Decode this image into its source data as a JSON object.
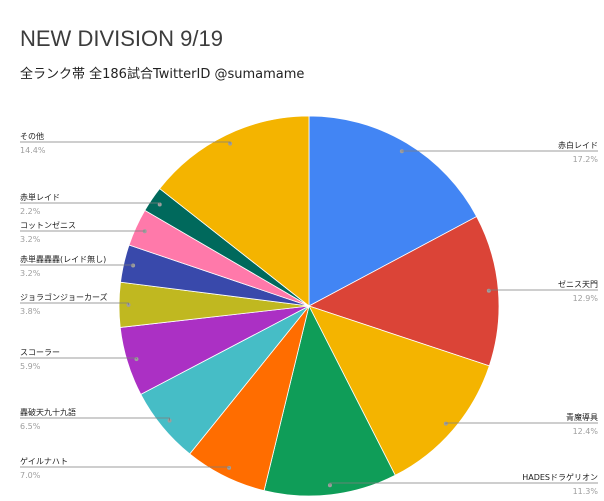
{
  "chart_data": {
    "type": "pie",
    "title": "NEW DIVISION 9/19",
    "subtitle": "全ランク帯 全186試合TwitterID @sumamame",
    "slices": [
      {
        "label": "赤白レイド",
        "percent_label": "17.2%",
        "value": 17.2,
        "color": "#4285f4"
      },
      {
        "label": "ゼニス天門",
        "percent_label": "12.9%",
        "value": 12.9,
        "color": "#db4437"
      },
      {
        "label": "青魔導具",
        "percent_label": "12.4%",
        "value": 12.4,
        "color": "#f4b400"
      },
      {
        "label": "HADESドラゲリオン",
        "percent_label": "11.3%",
        "value": 11.3,
        "color": "#0f9d58"
      },
      {
        "label": "ゲイルナハト",
        "percent_label": "7.0%",
        "value": 7.0,
        "color": "#ff6d00"
      },
      {
        "label": "轟破天九十九語",
        "percent_label": "6.5%",
        "value": 6.5,
        "color": "#46bdc6"
      },
      {
        "label": "スコーラー",
        "percent_label": "5.9%",
        "value": 5.9,
        "color": "#ab30c4"
      },
      {
        "label": "ジョラゴンジョーカーズ",
        "percent_label": "3.8%",
        "value": 3.8,
        "color": "#c0b820"
      },
      {
        "label": "赤単轟轟轟(レイド無し)",
        "percent_label": "3.2%",
        "value": 3.2,
        "color": "#3949ab"
      },
      {
        "label": "コットンゼニス",
        "percent_label": "3.2%",
        "value": 3.2,
        "color": "#ff79aa"
      },
      {
        "label": "赤単レイド",
        "percent_label": "2.2%",
        "value": 2.2,
        "color": "#00695c"
      },
      {
        "label": "その他",
        "percent_label": "14.4%",
        "value": 14.4,
        "color": "#f4b400"
      }
    ]
  }
}
